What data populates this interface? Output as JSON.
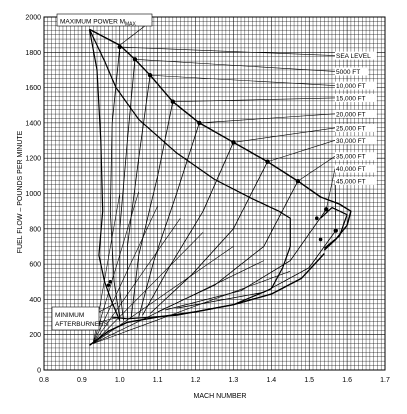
{
  "chart_data": {
    "type": "line",
    "xlabel": "MACH NUMBER",
    "ylabel": "FUEL FLOW – POUNDS PER MINUTE",
    "xlim": [
      0.8,
      1.7
    ],
    "ylim": [
      0,
      2000
    ],
    "x_ticks": [
      0.8,
      0.9,
      1.0,
      1.1,
      1.2,
      1.3,
      1.4,
      1.5,
      1.6,
      1.7
    ],
    "x_tick_labels": [
      "0.8",
      "0.9",
      "1.0",
      "1.1",
      "1.2",
      "1.3",
      "1.4",
      "1.5",
      "1.6",
      "1.7"
    ],
    "y_ticks": [
      0,
      200,
      400,
      600,
      800,
      1000,
      1200,
      1400,
      1600,
      1800,
      2000
    ],
    "y_tick_labels": [
      "0",
      "200",
      "400",
      "600",
      "800",
      "1000",
      "1200",
      "1400",
      "1600",
      "1800",
      "2000"
    ],
    "grid": true,
    "annotations": {
      "max_power": "MAXIMUM POWER M",
      "max_power_sub": "MAX",
      "min_afterburners_1": "MINIMUM",
      "min_afterburners_2": "AFTERBURNERS"
    },
    "altitude_labels": [
      "SEA LEVEL",
      "5000 FT",
      "10,000 FT",
      "15,000 FT",
      "20,000 FT",
      "25,000 FT",
      "30,000 FT",
      "35,000 FT",
      "40,000 FT",
      "45,000 FT"
    ],
    "altitude_label_anchor_y": [
      1770,
      1680,
      1600,
      1530,
      1440,
      1360,
      1290,
      1200,
      1130,
      1060
    ],
    "altitude_points": [
      {
        "x": 1.0,
        "y": 1830
      },
      {
        "x": 1.04,
        "y": 1760
      },
      {
        "x": 1.08,
        "y": 1670
      },
      {
        "x": 1.14,
        "y": 1520
      },
      {
        "x": 1.21,
        "y": 1400
      },
      {
        "x": 1.3,
        "y": 1290
      },
      {
        "x": 1.39,
        "y": 1180
      },
      {
        "x": 1.47,
        "y": 1070
      },
      {
        "x": 1.545,
        "y": 910
      },
      {
        "x": 1.57,
        "y": 790
      }
    ],
    "max_power_curve": [
      {
        "x": 0.92,
        "y": 1930
      },
      {
        "x": 1.0,
        "y": 1840
      },
      {
        "x": 1.04,
        "y": 1760
      },
      {
        "x": 1.08,
        "y": 1670
      },
      {
        "x": 1.14,
        "y": 1520
      },
      {
        "x": 1.21,
        "y": 1400
      },
      {
        "x": 1.3,
        "y": 1290
      },
      {
        "x": 1.39,
        "y": 1180
      },
      {
        "x": 1.47,
        "y": 1070
      },
      {
        "x": 1.53,
        "y": 980
      },
      {
        "x": 1.58,
        "y": 940
      },
      {
        "x": 1.61,
        "y": 900
      },
      {
        "x": 1.6,
        "y": 820
      },
      {
        "x": 1.57,
        "y": 740
      },
      {
        "x": 1.54,
        "y": 680
      }
    ],
    "inner_envelope": [
      {
        "x": 0.92,
        "y": 1930
      },
      {
        "x": 0.96,
        "y": 1750
      },
      {
        "x": 0.99,
        "y": 1600
      },
      {
        "x": 1.05,
        "y": 1420
      },
      {
        "x": 1.15,
        "y": 1230
      },
      {
        "x": 1.25,
        "y": 1080
      },
      {
        "x": 1.35,
        "y": 970
      },
      {
        "x": 1.42,
        "y": 900
      },
      {
        "x": 1.45,
        "y": 860
      },
      {
        "x": 1.45,
        "y": 700
      },
      {
        "x": 1.43,
        "y": 580
      },
      {
        "x": 1.4,
        "y": 460
      },
      {
        "x": 1.3,
        "y": 370
      },
      {
        "x": 1.15,
        "y": 310
      },
      {
        "x": 1.02,
        "y": 290
      },
      {
        "x": 0.98,
        "y": 300
      }
    ],
    "left_boundary": [
      {
        "x": 0.92,
        "y": 1930
      },
      {
        "x": 0.94,
        "y": 1700
      },
      {
        "x": 0.95,
        "y": 1300
      },
      {
        "x": 0.955,
        "y": 900
      },
      {
        "x": 0.945,
        "y": 650
      },
      {
        "x": 0.96,
        "y": 500
      },
      {
        "x": 0.98,
        "y": 380
      },
      {
        "x": 1.0,
        "y": 280
      }
    ],
    "min_afterburner_curve": [
      {
        "x": 0.92,
        "y": 140
      },
      {
        "x": 0.97,
        "y": 220
      },
      {
        "x": 1.02,
        "y": 270
      },
      {
        "x": 1.1,
        "y": 300
      },
      {
        "x": 1.2,
        "y": 330
      },
      {
        "x": 1.3,
        "y": 370
      },
      {
        "x": 1.4,
        "y": 430
      },
      {
        "x": 1.48,
        "y": 520
      },
      {
        "x": 1.54,
        "y": 660
      }
    ],
    "altitude_lines": [
      [
        {
          "x": 1.0,
          "y": 1830
        },
        {
          "x": 0.98,
          "y": 1400
        },
        {
          "x": 0.975,
          "y": 900
        },
        {
          "x": 0.985,
          "y": 500
        },
        {
          "x": 1.0,
          "y": 290
        }
      ],
      [
        {
          "x": 1.04,
          "y": 1760
        },
        {
          "x": 1.02,
          "y": 1300
        },
        {
          "x": 1.0,
          "y": 800
        },
        {
          "x": 1.0,
          "y": 450
        },
        {
          "x": 1.01,
          "y": 280
        }
      ],
      [
        {
          "x": 1.08,
          "y": 1670
        },
        {
          "x": 1.05,
          "y": 1200
        },
        {
          "x": 1.02,
          "y": 700
        },
        {
          "x": 1.02,
          "y": 280
        }
      ],
      [
        {
          "x": 1.14,
          "y": 1520
        },
        {
          "x": 1.1,
          "y": 1100
        },
        {
          "x": 1.05,
          "y": 650
        },
        {
          "x": 1.03,
          "y": 290
        }
      ],
      [
        {
          "x": 1.21,
          "y": 1400
        },
        {
          "x": 1.15,
          "y": 1000
        },
        {
          "x": 1.09,
          "y": 620
        },
        {
          "x": 1.05,
          "y": 300
        }
      ],
      [
        {
          "x": 1.3,
          "y": 1290
        },
        {
          "x": 1.22,
          "y": 900
        },
        {
          "x": 1.13,
          "y": 580
        },
        {
          "x": 1.06,
          "y": 310
        }
      ],
      [
        {
          "x": 1.39,
          "y": 1180
        },
        {
          "x": 1.3,
          "y": 800
        },
        {
          "x": 1.19,
          "y": 540
        },
        {
          "x": 1.08,
          "y": 320
        }
      ],
      [
        {
          "x": 1.47,
          "y": 1070
        },
        {
          "x": 1.38,
          "y": 700
        },
        {
          "x": 1.25,
          "y": 480
        },
        {
          "x": 1.1,
          "y": 330
        }
      ],
      [
        {
          "x": 1.545,
          "y": 910
        },
        {
          "x": 1.45,
          "y": 620
        },
        {
          "x": 1.32,
          "y": 450
        },
        {
          "x": 1.12,
          "y": 340
        }
      ],
      [
        {
          "x": 1.57,
          "y": 790
        },
        {
          "x": 1.5,
          "y": 580
        },
        {
          "x": 1.38,
          "y": 440
        },
        {
          "x": 1.15,
          "y": 350
        }
      ]
    ],
    "fan_lines": [
      [
        {
          "x": 0.93,
          "y": 150
        },
        {
          "x": 1.0,
          "y": 1000
        }
      ],
      [
        {
          "x": 0.93,
          "y": 150
        },
        {
          "x": 1.05,
          "y": 1010
        }
      ],
      [
        {
          "x": 0.93,
          "y": 150
        },
        {
          "x": 1.1,
          "y": 930
        }
      ],
      [
        {
          "x": 0.93,
          "y": 150
        },
        {
          "x": 1.16,
          "y": 860
        }
      ],
      [
        {
          "x": 0.93,
          "y": 150
        },
        {
          "x": 1.22,
          "y": 780
        }
      ],
      [
        {
          "x": 0.93,
          "y": 150
        },
        {
          "x": 1.3,
          "y": 700
        }
      ],
      [
        {
          "x": 0.93,
          "y": 150
        },
        {
          "x": 1.38,
          "y": 620
        }
      ],
      [
        {
          "x": 0.93,
          "y": 150
        },
        {
          "x": 1.45,
          "y": 560
        }
      ]
    ]
  }
}
